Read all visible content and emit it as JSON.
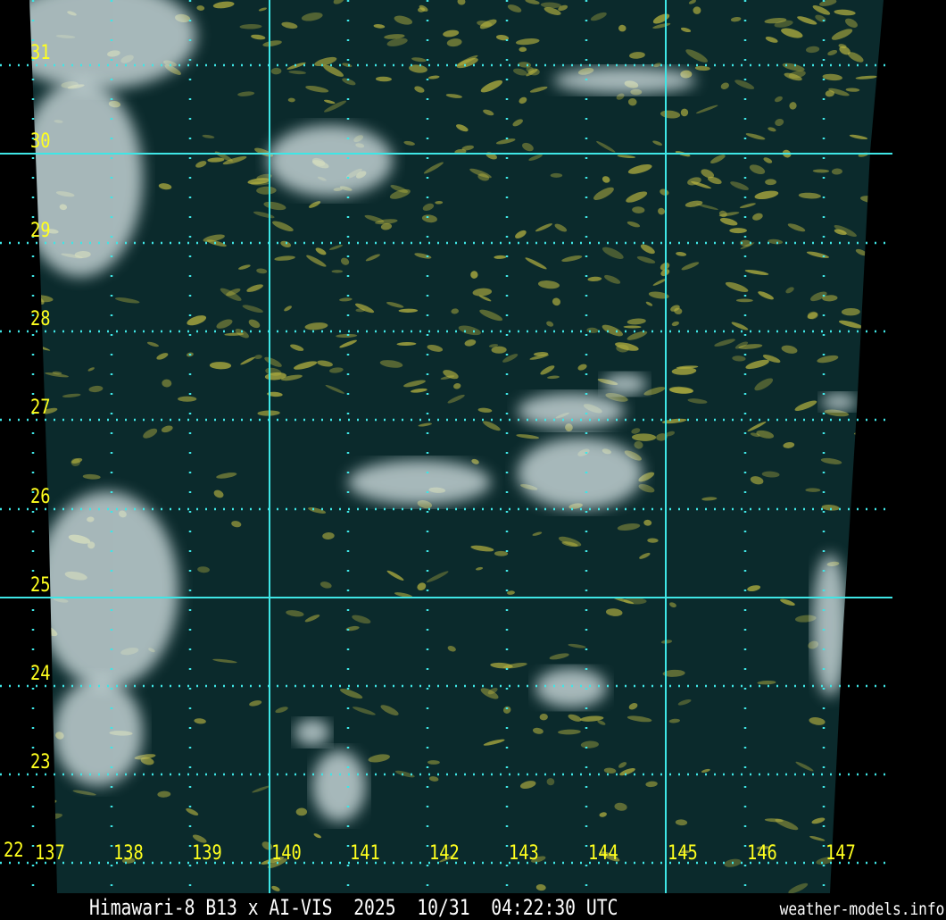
{
  "caption": "Himawari-8 B13 x AI-VIS  2025  10/31  04:22:30 UTC",
  "site": "weather-models.info",
  "colors": {
    "grid": "#3fe6e6",
    "labels": "#ffff1e",
    "ocean": "#0b2a2c",
    "cloud": "#e8f4f6",
    "lowcloud": "#b8b440"
  },
  "latitudes": [
    "31",
    "30",
    "29",
    "28",
    "27",
    "26",
    "25",
    "24",
    "23",
    "22"
  ],
  "longitudes": [
    "137",
    "138",
    "139",
    "140",
    "141",
    "142",
    "143",
    "144",
    "145",
    "146",
    "147"
  ],
  "solid_latitudes": [
    "30",
    "25"
  ],
  "solid_longitudes": [
    "140",
    "145"
  ]
}
